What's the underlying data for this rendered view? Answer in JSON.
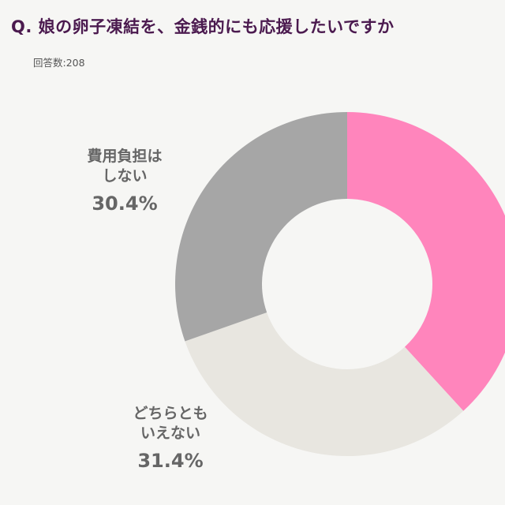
{
  "header": {
    "title": "Q. 娘の卵子凍結を、金銭的にも応援したいですか",
    "respondents": "回答数:208"
  },
  "chart_data": {
    "type": "pie",
    "variant": "donut",
    "title": "Q. 娘の卵子凍結を、金銭的にも応援したいですか",
    "slices": [
      {
        "name": "",
        "value": 38.2,
        "color": "#ff85bc"
      },
      {
        "name": "どちらともいえない",
        "value": 31.4,
        "display": "31.4%",
        "lines": [
          "どちらとも",
          "いえない"
        ],
        "color": "#e8e6e0"
      },
      {
        "name": "費用負担はしない",
        "value": 30.4,
        "display": "30.4%",
        "lines": [
          "費用負担は",
          "しない"
        ],
        "color": "#a6a6a6"
      }
    ]
  }
}
